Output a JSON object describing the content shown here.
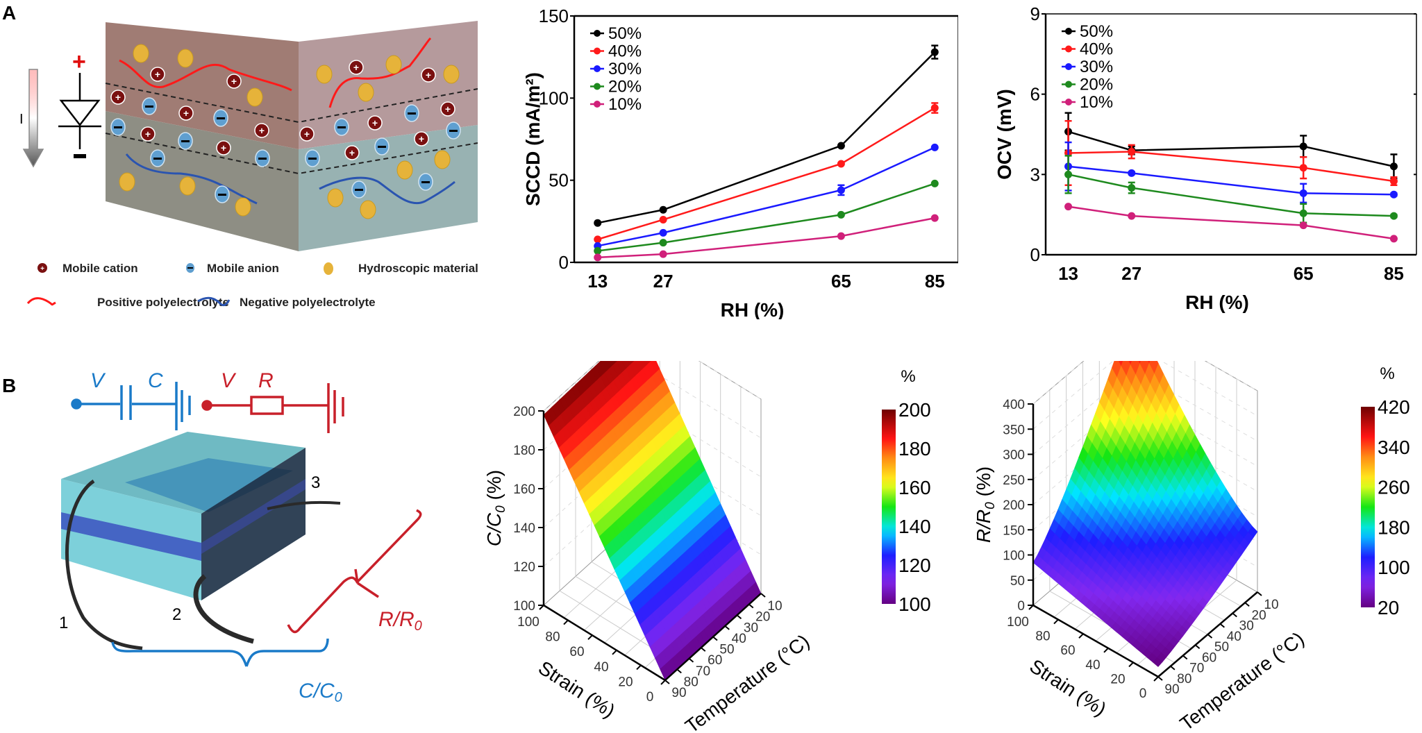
{
  "panels": {
    "A": {
      "label": "A"
    },
    "B": {
      "label": "B"
    }
  },
  "diagram_a": {
    "diode_plus": "+",
    "diode_minus": "−",
    "current_label": "I",
    "legend": [
      {
        "icon": "cation-icon",
        "label": "Mobile cation"
      },
      {
        "icon": "anion-icon",
        "label": "Mobile anion"
      },
      {
        "icon": "hygroscopic-particle-icon",
        "label": "Hydroscopic material"
      },
      {
        "icon": "positive-polyelectrolyte-icon",
        "label": "Positive polyelectrolyte"
      },
      {
        "icon": "negative-polyelectrolyte-icon",
        "label": "Negative polyelectrolyte"
      }
    ],
    "colors": {
      "top_layer": "#b58880",
      "bottom_layer": "#8fa5a3",
      "cation": "#7a1010",
      "anion": "#5f9fd0",
      "particle": "#e6b33a",
      "pos_poly": "#ff1a1a",
      "neg_poly": "#2a54b0"
    }
  },
  "diagram_b": {
    "cap_circuit": {
      "v_label": "V",
      "c_label": "C",
      "color": "#1a7ac8"
    },
    "res_circuit": {
      "v_label": "V",
      "r_label": "R",
      "color": "#c8202a"
    },
    "electrodes": [
      "1",
      "2",
      "3"
    ],
    "cap_ratio_label": "C/C",
    "cap_ratio_sub": "0",
    "res_ratio_label": "R/R",
    "res_ratio_sub": "0"
  },
  "chart_data": [
    {
      "type": "line",
      "title": "",
      "xlabel": "RH (%)",
      "ylabel": "SCCD (mA/m²)",
      "x": [
        13,
        27,
        65,
        85
      ],
      "xticks": [
        "13",
        "27",
        "65",
        "85"
      ],
      "ylim": [
        0,
        150
      ],
      "yticks": [
        "0",
        "50",
        "100",
        "150"
      ],
      "yticks_values": [
        0,
        50,
        100,
        150
      ],
      "legend_position": "top-left",
      "series": [
        {
          "name": "50%",
          "color": "#000000",
          "values": [
            24,
            32,
            71,
            128
          ],
          "errors": [
            0,
            0,
            0,
            4
          ]
        },
        {
          "name": "40%",
          "color": "#ff1a1a",
          "values": [
            14,
            26,
            60,
            94
          ],
          "errors": [
            0,
            0,
            0,
            3
          ]
        },
        {
          "name": "30%",
          "color": "#1a1aff",
          "values": [
            10,
            18,
            44,
            70
          ],
          "errors": [
            0,
            0,
            3,
            0
          ]
        },
        {
          "name": "20%",
          "color": "#1e8a1e",
          "values": [
            7,
            12,
            29,
            48
          ],
          "errors": [
            0,
            0,
            0,
            0
          ]
        },
        {
          "name": "10%",
          "color": "#d0207a",
          "values": [
            3,
            5,
            16,
            27
          ],
          "errors": [
            0,
            0,
            0,
            0
          ]
        }
      ]
    },
    {
      "type": "line",
      "title": "",
      "xlabel": "RH (%)",
      "ylabel": "OCV (mV)",
      "x": [
        13,
        27,
        65,
        85
      ],
      "xticks": [
        "13",
        "27",
        "65",
        "85"
      ],
      "ylim": [
        0,
        9
      ],
      "yticks": [
        "0",
        "3",
        "6",
        "9"
      ],
      "yticks_values": [
        0,
        3,
        6,
        9
      ],
      "legend_position": "top-left",
      "series": [
        {
          "name": "50%",
          "color": "#000000",
          "values": [
            4.6,
            3.9,
            4.05,
            3.3
          ],
          "errors": [
            0.7,
            0.15,
            0.4,
            0.45
          ]
        },
        {
          "name": "40%",
          "color": "#ff1a1a",
          "values": [
            3.8,
            3.85,
            3.25,
            2.75
          ],
          "errors": [
            1.2,
            0.25,
            0.4,
            0.15
          ]
        },
        {
          "name": "30%",
          "color": "#1a1aff",
          "values": [
            3.3,
            3.05,
            2.3,
            2.25
          ],
          "errors": [
            0.9,
            0.05,
            0.35,
            0.05
          ]
        },
        {
          "name": "20%",
          "color": "#1e8a1e",
          "values": [
            3.0,
            2.5,
            1.55,
            1.45
          ],
          "errors": [
            0.7,
            0.2,
            0.35,
            0.05
          ]
        },
        {
          "name": "10%",
          "color": "#d0207a",
          "values": [
            1.8,
            1.45,
            1.1,
            0.6
          ],
          "errors": [
            0,
            0,
            0,
            0
          ]
        }
      ]
    },
    {
      "type": "surface3d",
      "title": "",
      "zlabel": "C/C₀ (%)",
      "zlabel_main": "C/C",
      "zlabel_sub": "0",
      "zlabel_tail": " (%)",
      "xlabel": "Strain (%)",
      "ylabel": "Temperature (°C)",
      "strain_ticks": [
        "0",
        "20",
        "40",
        "60",
        "80",
        "100"
      ],
      "temperature_ticks": [
        "90",
        "80",
        "70",
        "60",
        "50",
        "40",
        "30",
        "20",
        "10"
      ],
      "zlim": [
        100,
        200
      ],
      "zticks": [
        "100",
        "120",
        "140",
        "160",
        "180",
        "200"
      ],
      "colorbar": {
        "unit": "%",
        "range": [
          100,
          200
        ],
        "ticks": [
          "200",
          "180",
          "160",
          "140",
          "120",
          "100"
        ]
      },
      "surface_description": "C/C0 increases linearly with strain from ~100% at 0% strain to ~200% at 100% strain; nearly independent of temperature",
      "corner_values": {
        "strain0_temp90": 100,
        "strain0_temp10": 100,
        "strain100_temp90": 198,
        "strain100_temp10": 200
      }
    },
    {
      "type": "surface3d",
      "title": "",
      "zlabel": "R/R₀ (%)",
      "zlabel_main": "R/R",
      "zlabel_sub": "0",
      "zlabel_tail": " (%)",
      "xlabel": "Strain (%)",
      "ylabel": "Temperature (°C)",
      "strain_ticks": [
        "0",
        "20",
        "40",
        "60",
        "80",
        "100"
      ],
      "temperature_ticks": [
        "90",
        "80",
        "70",
        "60",
        "50",
        "40",
        "30",
        "20",
        "10"
      ],
      "zlim": [
        0,
        400
      ],
      "zticks": [
        "0",
        "50",
        "100",
        "150",
        "200",
        "250",
        "300",
        "350",
        "400"
      ],
      "colorbar": {
        "unit": "%",
        "range": [
          20,
          420
        ],
        "ticks": [
          "420",
          "340",
          "260",
          "180",
          "100",
          "20"
        ]
      },
      "surface_description": "R/R0 rises with strain and with decreasing temperature; minimum ~20% at 0% strain, 90°C; maximum ~420% at 100% strain, 10°C",
      "corner_values": {
        "strain0_temp90": 20,
        "strain100_temp90": 85,
        "strain0_temp10": 120,
        "strain100_temp10": 420
      }
    }
  ]
}
